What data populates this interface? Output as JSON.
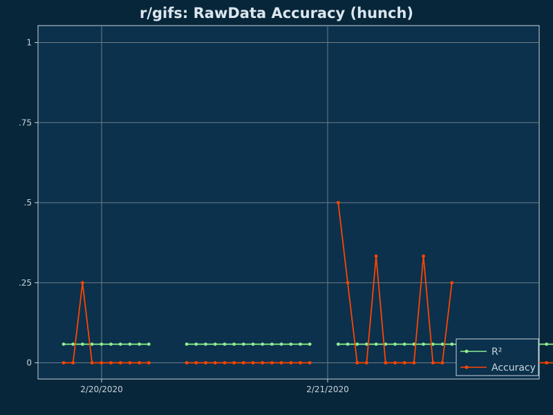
{
  "chart_data": {
    "type": "line",
    "title": "r/gifs: RawData Accuracy (hunch)",
    "xlabel": "",
    "ylabel": "",
    "x_tick_labels": [
      "2/20/2020",
      "2/21/2020"
    ],
    "y_tick_labels": [
      "0",
      ".25",
      ".5",
      ".75",
      "1"
    ],
    "ylim": [
      -0.05,
      1.05
    ],
    "grid": true,
    "legend_position": "bottom-right",
    "series": [
      {
        "name": "R²",
        "color": "#90ee90",
        "values": [
          0.058,
          0.058,
          0.058,
          0.058,
          0.058,
          0.058,
          0.058,
          0.058,
          0.058,
          0.058,
          null,
          null,
          null,
          0.058,
          0.058,
          0.058,
          0.058,
          0.058,
          0.058,
          0.058,
          0.058,
          0.058,
          0.058,
          0.058,
          0.058,
          0.058,
          0.058,
          null,
          null,
          0.058,
          0.058,
          0.058,
          0.058,
          0.058,
          0.058,
          0.058,
          0.058,
          0.058,
          0.058,
          0.058,
          0.058,
          0.058,
          0.058,
          0.058,
          0.058,
          0.058,
          0.058,
          0.058,
          0.058,
          0.058,
          0.058,
          0.058,
          0.058,
          0.058
        ]
      },
      {
        "name": "Accuracy",
        "color": "#ff4500",
        "values": [
          0,
          0,
          0.25,
          0,
          0,
          0,
          0,
          0,
          0,
          0,
          null,
          null,
          null,
          0,
          0,
          0,
          0,
          0,
          0,
          0,
          0,
          0,
          0,
          0,
          0,
          0,
          0,
          null,
          null,
          0.5,
          0.25,
          0,
          0,
          0.333,
          0,
          0,
          0,
          0,
          0.333,
          0,
          0,
          0.25,
          null,
          null,
          0,
          0,
          0,
          0,
          0,
          0,
          0,
          0,
          0,
          0
        ]
      }
    ]
  }
}
